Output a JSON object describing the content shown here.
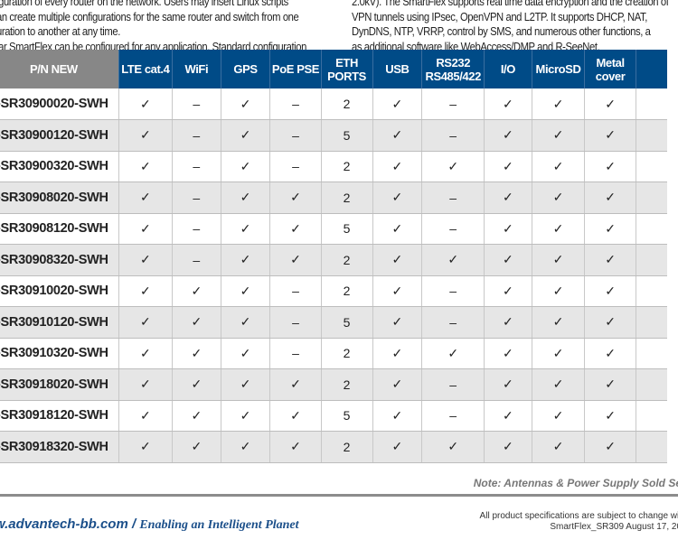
{
  "intro_left": [
    "iguration of every router on the network. Users may insert Linux scripts",
    "an create multiple configurations for the same router and switch from one",
    "uration to another at any time.",
    "lar SmartFlex can be configured for any application. Standard configuration"
  ],
  "intro_right": [
    "2.0kV). The SmartFlex supports real time data encryption and the creation of",
    "VPN tunnels using IPsec, OpenVPN and L2TP. It supports DHCP, NAT,",
    "DynDNS, NTP, VRRP, control by SMS, and numerous other functions, a",
    "as additional software like WebAccess/DMP and R-SeeNet."
  ],
  "table": {
    "headers": [
      "P/N NEW",
      "LTE cat.4",
      "WiFi",
      "GPS",
      "PoE PSE",
      "ETH PORTS",
      "USB",
      "RS232\nRS485/422",
      "I/O",
      "MicroSD",
      "Metal\ncover",
      ""
    ],
    "rows": [
      [
        "-SR30900020-SWH",
        "✓",
        "–",
        "✓",
        "–",
        "2",
        "✓",
        "–",
        "✓",
        "✓",
        "✓",
        ""
      ],
      [
        "-SR30900120-SWH",
        "✓",
        "–",
        "✓",
        "–",
        "5",
        "✓",
        "–",
        "✓",
        "✓",
        "✓",
        ""
      ],
      [
        "-SR30900320-SWH",
        "✓",
        "–",
        "✓",
        "–",
        "2",
        "✓",
        "✓",
        "✓",
        "✓",
        "✓",
        ""
      ],
      [
        "-SR30908020-SWH",
        "✓",
        "–",
        "✓",
        "✓",
        "2",
        "✓",
        "–",
        "✓",
        "✓",
        "✓",
        ""
      ],
      [
        "-SR30908120-SWH",
        "✓",
        "–",
        "✓",
        "✓",
        "5",
        "✓",
        "–",
        "✓",
        "✓",
        "✓",
        ""
      ],
      [
        "-SR30908320-SWH",
        "✓",
        "–",
        "✓",
        "✓",
        "2",
        "✓",
        "✓",
        "✓",
        "✓",
        "✓",
        ""
      ],
      [
        "-SR30910020-SWH",
        "✓",
        "✓",
        "✓",
        "–",
        "2",
        "✓",
        "–",
        "✓",
        "✓",
        "✓",
        ""
      ],
      [
        "-SR30910120-SWH",
        "✓",
        "✓",
        "✓",
        "–",
        "5",
        "✓",
        "–",
        "✓",
        "✓",
        "✓",
        ""
      ],
      [
        "-SR30910320-SWH",
        "✓",
        "✓",
        "✓",
        "–",
        "2",
        "✓",
        "✓",
        "✓",
        "✓",
        "✓",
        ""
      ],
      [
        "-SR30918020-SWH",
        "✓",
        "✓",
        "✓",
        "✓",
        "2",
        "✓",
        "–",
        "✓",
        "✓",
        "✓",
        ""
      ],
      [
        "-SR30918120-SWH",
        "✓",
        "✓",
        "✓",
        "✓",
        "5",
        "✓",
        "–",
        "✓",
        "✓",
        "✓",
        ""
      ],
      [
        "-SR30918320-SWH",
        "✓",
        "✓",
        "✓",
        "✓",
        "2",
        "✓",
        "✓",
        "✓",
        "✓",
        "✓",
        ""
      ]
    ]
  },
  "note": "Note: Antennas & Power Supply Sold Se",
  "footer": {
    "website": "w.advantech-bb.com",
    "separator": " / ",
    "tagline": "Enabling an Intelligent Planet",
    "legal_1": "All product specifications are subject to change wit",
    "legal_2": "SmartFlex_SR309 August 17, 20"
  },
  "colors": {
    "header_blue": "#004b87",
    "header_gray": "#878787",
    "alt_row": "#e6e6e6",
    "brand_blue": "#1b4f8a"
  }
}
